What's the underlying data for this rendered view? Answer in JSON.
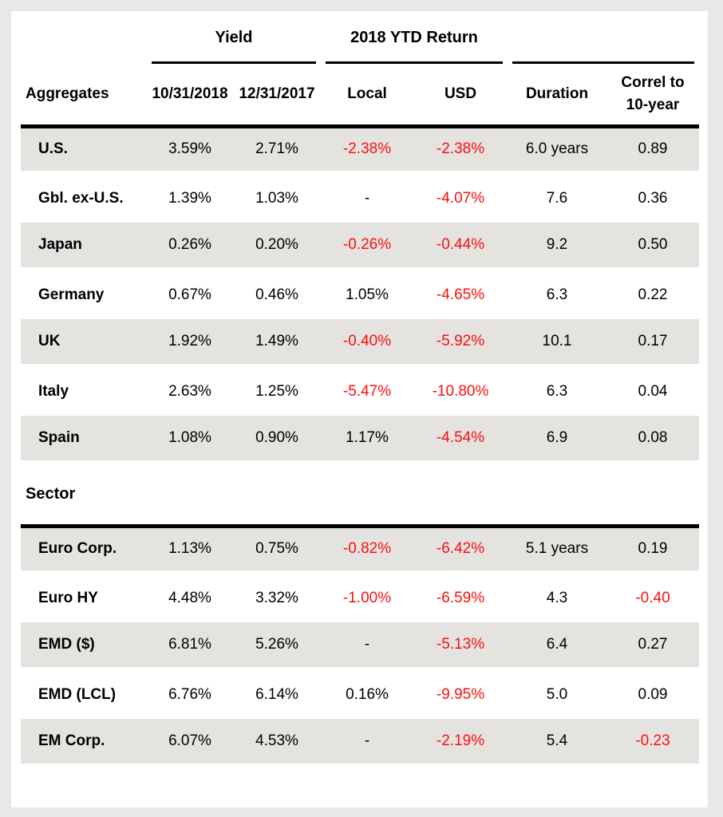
{
  "colors": {
    "page_background": "#e8e8e6",
    "card_background": "#ffffff",
    "row_shade": "#e4e3e0",
    "negative_red": "#fb0f0f",
    "text": "#000000"
  },
  "chart_data": {
    "type": "table",
    "col_groups": [
      {
        "label": "Yield",
        "span": 2
      },
      {
        "label": "2018 YTD Return",
        "span": 2
      },
      {
        "label": "",
        "span": 2
      }
    ],
    "row_header": "Aggregates",
    "columns": [
      "10/31/2018",
      "12/31/2017",
      "Local",
      "USD",
      "Duration",
      "Correl to 10-year"
    ],
    "sections": [
      {
        "header": "",
        "rows": [
          {
            "label": "U.S.",
            "values": [
              "3.59%",
              "2.71%",
              "-2.38%",
              "-2.38%",
              "6.0 years",
              "0.89"
            ]
          },
          {
            "label": "Gbl. ex-U.S.",
            "values": [
              "1.39%",
              "1.03%",
              "-",
              "-4.07%",
              "7.6",
              "0.36"
            ]
          },
          {
            "label": "Japan",
            "values": [
              "0.26%",
              "0.20%",
              "-0.26%",
              "-0.44%",
              "9.2",
              "0.50"
            ]
          },
          {
            "label": "Germany",
            "values": [
              "0.67%",
              "0.46%",
              "1.05%",
              "-4.65%",
              "6.3",
              "0.22"
            ]
          },
          {
            "label": "UK",
            "values": [
              "1.92%",
              "1.49%",
              "-0.40%",
              "-5.92%",
              "10.1",
              "0.17"
            ]
          },
          {
            "label": "Italy",
            "values": [
              "2.63%",
              "1.25%",
              "-5.47%",
              "-10.80%",
              "6.3",
              "0.04"
            ]
          },
          {
            "label": "Spain",
            "values": [
              "1.08%",
              "0.90%",
              "1.17%",
              "-4.54%",
              "6.9",
              "0.08"
            ]
          }
        ]
      },
      {
        "header": "Sector",
        "rows": [
          {
            "label": "Euro Corp.",
            "values": [
              "1.13%",
              "0.75%",
              "-0.82%",
              "-6.42%",
              "5.1 years",
              "0.19"
            ]
          },
          {
            "label": "Euro HY",
            "values": [
              "4.48%",
              "3.32%",
              "-1.00%",
              "-6.59%",
              "4.3",
              "-0.40"
            ]
          },
          {
            "label": "EMD ($)",
            "values": [
              "6.81%",
              "5.26%",
              "-",
              "-5.13%",
              "6.4",
              "0.27"
            ]
          },
          {
            "label": "EMD (LCL)",
            "values": [
              "6.76%",
              "6.14%",
              "0.16%",
              "-9.95%",
              "5.0",
              "0.09"
            ]
          },
          {
            "label": "EM Corp.",
            "values": [
              "6.07%",
              "4.53%",
              "-",
              "-2.19%",
              "5.4",
              "-0.23"
            ]
          }
        ]
      }
    ]
  }
}
